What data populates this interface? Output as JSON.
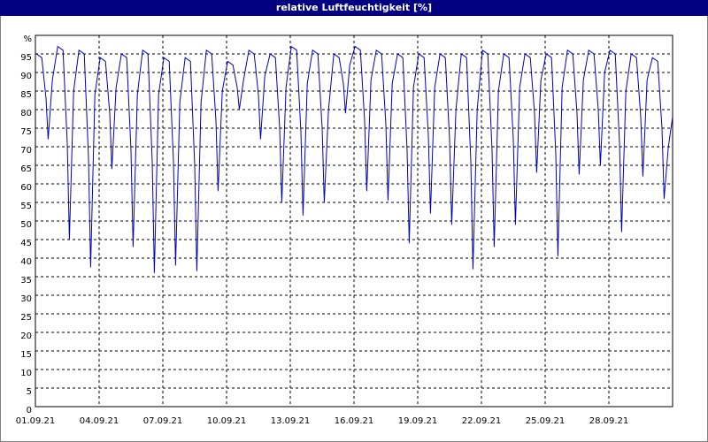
{
  "chart_data": {
    "type": "line",
    "title": "relative Luftfeuchtigkeit [%]",
    "xlim": [
      0,
      30
    ],
    "xticks": [
      {
        "value": 0,
        "label": "01.09.21"
      },
      {
        "value": 3,
        "label": "04.09.21"
      },
      {
        "value": 6,
        "label": "07.09.21"
      },
      {
        "value": 9,
        "label": "10.09.21"
      },
      {
        "value": 12,
        "label": "13.09.21"
      },
      {
        "value": 15,
        "label": "16.09.21"
      },
      {
        "value": 18,
        "label": "19.09.21"
      },
      {
        "value": 21,
        "label": "22.09.21"
      },
      {
        "value": 24,
        "label": "25.09.21"
      },
      {
        "value": 27,
        "label": "28.09.21"
      }
    ],
    "ylim": [
      0,
      100
    ],
    "yticks": [
      0,
      5,
      10,
      15,
      20,
      25,
      30,
      35,
      40,
      45,
      50,
      55,
      60,
      65,
      70,
      75,
      80,
      85,
      90,
      95,
      {
        "value": 100,
        "label": "%"
      }
    ],
    "grid": true,
    "x": [
      0.05,
      0.3,
      0.5,
      0.6,
      0.8,
      1.05,
      1.3,
      1.5,
      1.6,
      1.8,
      2.05,
      2.3,
      2.5,
      2.6,
      2.8,
      3.05,
      3.3,
      3.5,
      3.6,
      3.8,
      4.05,
      4.3,
      4.5,
      4.6,
      4.8,
      5.05,
      5.3,
      5.5,
      5.6,
      5.8,
      6.05,
      6.3,
      6.5,
      6.6,
      6.8,
      7.05,
      7.3,
      7.5,
      7.6,
      7.8,
      8.05,
      8.3,
      8.5,
      8.6,
      8.8,
      9.05,
      9.3,
      9.5,
      9.6,
      9.8,
      10.05,
      10.3,
      10.5,
      10.6,
      10.8,
      11.05,
      11.3,
      11.5,
      11.6,
      11.8,
      12.05,
      12.3,
      12.5,
      12.6,
      12.8,
      13.05,
      13.3,
      13.5,
      13.6,
      13.8,
      14.05,
      14.3,
      14.5,
      14.6,
      14.8,
      15.05,
      15.3,
      15.5,
      15.6,
      15.8,
      16.05,
      16.3,
      16.5,
      16.6,
      16.8,
      17.05,
      17.3,
      17.5,
      17.6,
      17.8,
      18.05,
      18.3,
      18.5,
      18.6,
      18.8,
      19.05,
      19.3,
      19.5,
      19.6,
      19.8,
      20.05,
      20.3,
      20.5,
      20.6,
      20.8,
      21.05,
      21.3,
      21.5,
      21.6,
      21.8,
      22.05,
      22.3,
      22.5,
      22.6,
      22.8,
      23.05,
      23.3,
      23.5,
      23.6,
      23.8,
      24.05,
      24.3,
      24.5,
      24.6,
      24.8,
      25.05,
      25.3,
      25.5,
      25.6,
      25.8,
      26.05,
      26.3,
      26.5,
      26.6,
      26.8,
      27.05,
      27.3,
      27.5,
      27.6,
      27.8,
      28.05,
      28.3,
      28.5,
      28.6,
      28.8,
      29.05,
      29.3,
      29.5,
      29.6,
      29.8,
      30
    ],
    "series": [
      {
        "color": "#0000c0",
        "values": [
          95,
          94,
          83,
          72,
          88,
          97,
          96,
          71,
          45,
          85,
          96,
          95,
          67,
          37.5,
          84,
          94,
          93,
          79,
          64,
          86,
          95,
          94,
          69,
          43,
          84,
          96,
          95,
          66,
          36,
          84,
          94,
          93,
          66,
          38,
          82,
          94,
          93,
          65,
          36.5,
          82,
          96,
          95,
          77,
          58,
          85,
          93,
          92,
          86,
          80,
          88,
          96,
          95,
          84,
          72,
          89,
          95,
          94,
          75,
          55,
          86,
          97,
          96,
          74,
          51.5,
          87,
          96,
          95,
          75,
          55,
          80,
          95,
          94,
          87,
          79,
          92,
          97,
          96,
          77,
          58,
          88,
          96,
          95,
          76,
          55.5,
          87,
          95,
          94,
          69,
          44,
          86,
          95,
          94,
          73,
          52,
          86,
          95,
          94,
          72,
          49,
          80,
          95,
          94,
          66,
          37,
          80,
          96,
          95,
          69,
          43,
          85,
          95,
          94,
          72,
          49,
          86,
          95,
          94,
          79,
          63,
          88,
          95,
          94,
          68,
          40.5,
          86,
          96,
          95,
          79,
          62.5,
          88,
          96,
          95,
          80,
          65,
          90,
          96,
          95,
          71,
          47,
          85,
          95,
          94,
          78,
          62,
          88,
          94,
          93,
          75,
          56,
          70,
          78
        ]
      }
    ]
  }
}
